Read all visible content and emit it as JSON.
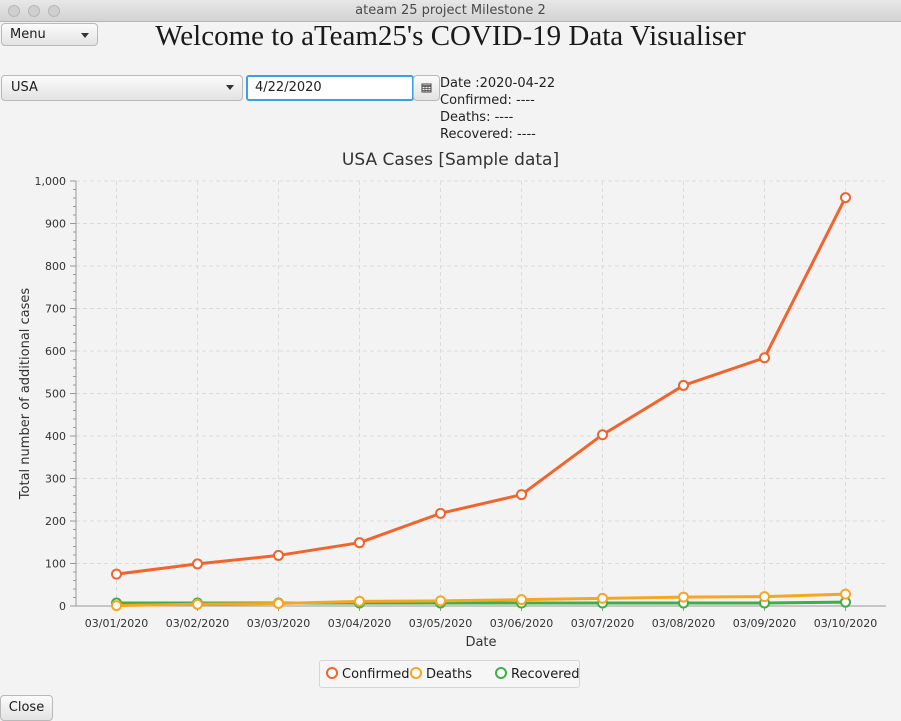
{
  "window": {
    "title": "ateam 25 project Milestone 2"
  },
  "menu": {
    "label": "Menu"
  },
  "header": {
    "title": "Welcome to aTeam25's COVID-19 Data Visualiser"
  },
  "controls": {
    "country": "USA",
    "date_value": "4/22/2020",
    "calendar_icon": "calendar-icon"
  },
  "info": {
    "date": "Date :2020-04-22",
    "confirmed": "Confirmed: ----",
    "deaths": "Deaths: ----",
    "recovered": "Recovered: ----"
  },
  "footer": {
    "close_label": "Close"
  },
  "chart_data": {
    "type": "line",
    "title": "USA Cases [Sample data]",
    "xlabel": "Date",
    "ylabel": "Total number of additional cases",
    "categories": [
      "03/01/2020",
      "03/02/2020",
      "03/03/2020",
      "03/04/2020",
      "03/05/2020",
      "03/06/2020",
      "03/07/2020",
      "03/08/2020",
      "03/09/2020",
      "03/10/2020"
    ],
    "ylim": [
      0,
      1000
    ],
    "yticks": [
      0,
      100,
      200,
      300,
      400,
      500,
      600,
      700,
      800,
      900,
      1000
    ],
    "ytick_labels": [
      "0",
      "100",
      "200",
      "300",
      "400",
      "500",
      "600",
      "700",
      "800",
      "900",
      "1,000"
    ],
    "grid": true,
    "legend_position": "bottom",
    "series": [
      {
        "name": "Confirmed",
        "color": "#f0642e",
        "values": [
          75,
          99,
          119,
          149,
          218,
          262,
          403,
          519,
          584,
          961
        ]
      },
      {
        "name": "Deaths",
        "color": "#f5a623",
        "values": [
          1,
          4,
          6,
          11,
          12,
          15,
          18,
          21,
          22,
          28
        ]
      },
      {
        "name": "Recovered",
        "color": "#3fae49",
        "values": [
          7,
          7,
          7,
          7,
          7,
          7,
          7,
          7,
          7,
          9
        ]
      }
    ]
  }
}
